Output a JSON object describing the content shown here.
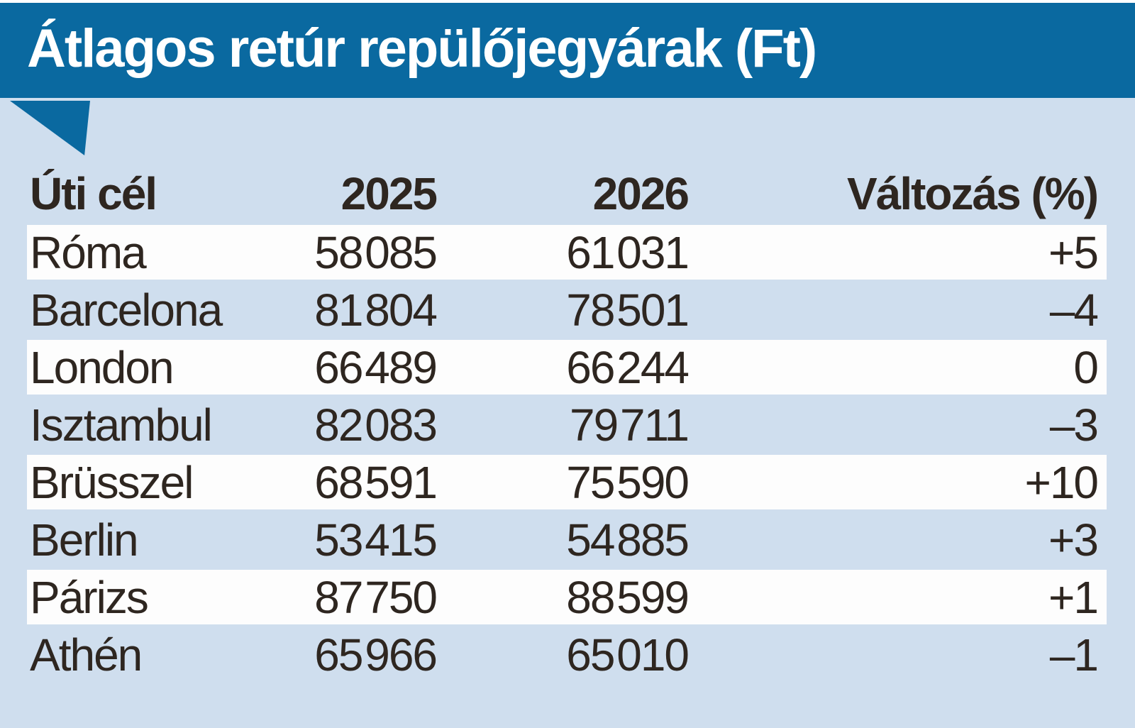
{
  "title": "Átlagos retúr repülőjegyárak (Ft)",
  "colors": {
    "header_blue": "#0a69a0",
    "background_light_blue": "#cfdeee",
    "row_white": "#fdfdfd",
    "text_dark": "#2e2620",
    "title_text": "#ffffff"
  },
  "table": {
    "columns": {
      "destination": "Úti cél",
      "y2025": "2025",
      "y2026": "2026",
      "change": "Változás (%)"
    },
    "rows": [
      {
        "destination": "Róma",
        "y2025": "58 085",
        "y2026": "61 031",
        "change": "+5"
      },
      {
        "destination": "Barcelona",
        "y2025": "81 804",
        "y2026": "78 501",
        "change": "–4"
      },
      {
        "destination": "London",
        "y2025": "66 489",
        "y2026": "66 244",
        "change": "0"
      },
      {
        "destination": "Isztambul",
        "y2025": "82 083",
        "y2026": "79 711",
        "change": "–3"
      },
      {
        "destination": "Brüsszel",
        "y2025": "68 591",
        "y2026": "75 590",
        "change": "+10"
      },
      {
        "destination": "Berlin",
        "y2025": "53 415",
        "y2026": "54 885",
        "change": "+3"
      },
      {
        "destination": "Párizs",
        "y2025": "87 750",
        "y2026": "88 599",
        "change": "+1"
      },
      {
        "destination": "Athén",
        "y2025": "65 966",
        "y2026": "65 010",
        "change": "–1"
      }
    ]
  },
  "chart_data": {
    "type": "table",
    "title": "Átlagos retúr repülőjegyárak (Ft)",
    "columns": [
      "Úti cél",
      "2025",
      "2026",
      "Változás (%)"
    ],
    "categories": [
      "Róma",
      "Barcelona",
      "London",
      "Isztambul",
      "Brüsszel",
      "Berlin",
      "Párizs",
      "Athén"
    ],
    "series": [
      {
        "name": "2025",
        "values": [
          58085,
          81804,
          66489,
          82083,
          68591,
          53415,
          87750,
          65966
        ]
      },
      {
        "name": "2026",
        "values": [
          61031,
          78501,
          66244,
          79711,
          75590,
          54885,
          88599,
          65010
        ]
      },
      {
        "name": "Változás (%)",
        "values": [
          5,
          -4,
          0,
          -3,
          10,
          3,
          1,
          -1
        ]
      }
    ]
  }
}
